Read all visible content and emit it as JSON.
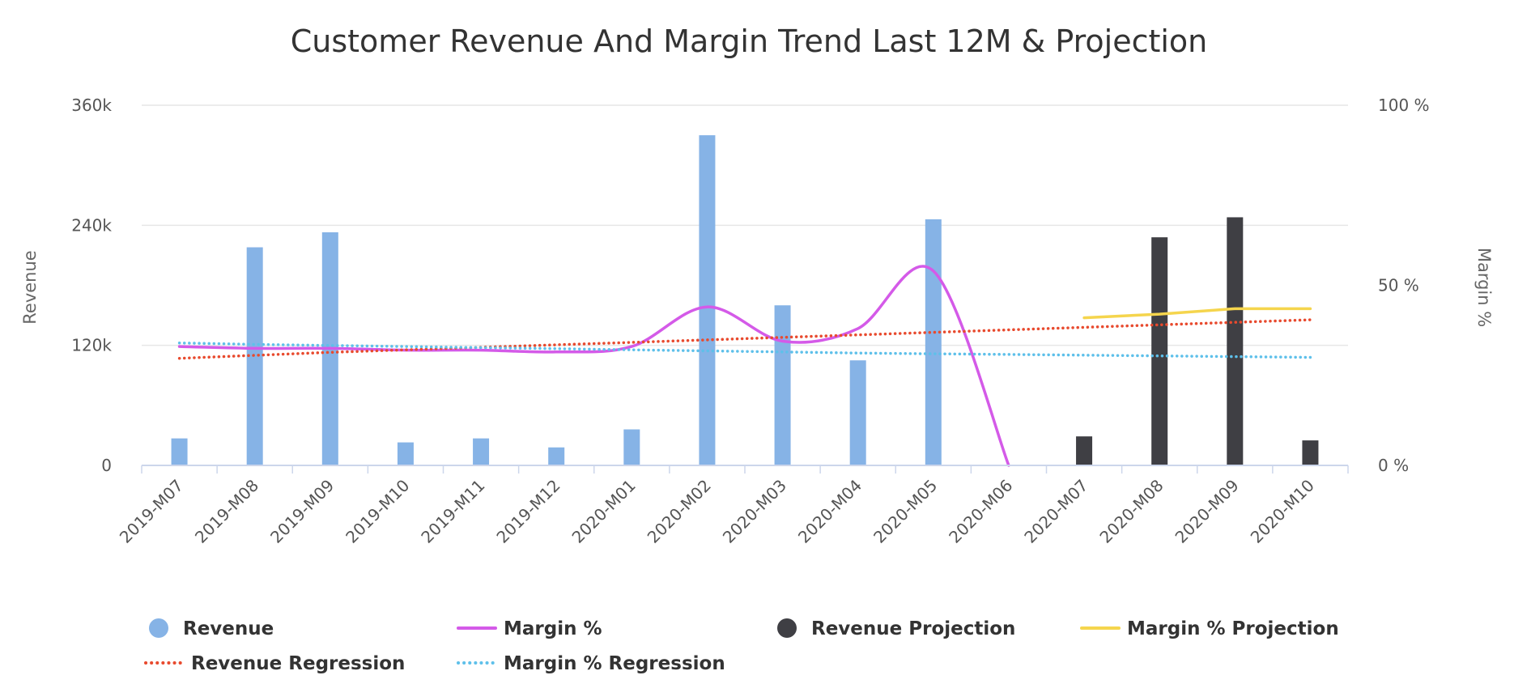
{
  "chart_data": {
    "type": "bar",
    "title": "Customer Revenue And Margin Trend Last 12M & Projection",
    "categories": [
      "2019-M07",
      "2019-M08",
      "2019-M09",
      "2019-M10",
      "2019-M11",
      "2019-M12",
      "2020-M01",
      "2020-M02",
      "2020-M03",
      "2020-M04",
      "2020-M05",
      "2020-M06",
      "2020-M07",
      "2020-M08",
      "2020-M09",
      "2020-M10"
    ],
    "y_left": {
      "title": "Revenue",
      "min": 0,
      "max": 360000,
      "ticks": [
        0,
        120000,
        240000,
        360000
      ],
      "tick_labels": [
        "0",
        "120k",
        "240k",
        "360k"
      ]
    },
    "y_right": {
      "title": "Margin %",
      "min": 0,
      "max": 100,
      "ticks": [
        0,
        50,
        100
      ],
      "tick_labels": [
        "0 %",
        "50 %",
        "100 %"
      ]
    },
    "grid": true,
    "legend_position": "bottom",
    "series": [
      {
        "name": "Revenue",
        "kind": "bar",
        "axis": "left",
        "color": "#86b3e6",
        "values": [
          27000,
          218000,
          233000,
          23000,
          27000,
          18000,
          36000,
          330000,
          160000,
          105000,
          246000,
          null,
          null,
          null,
          null,
          null
        ]
      },
      {
        "name": "Margin %",
        "kind": "spline",
        "axis": "right",
        "color": "#d45ae8",
        "values": [
          33,
          32.5,
          32.5,
          32,
          32,
          31.5,
          33,
          44,
          34.5,
          38,
          54,
          0,
          null,
          null,
          null,
          null
        ]
      },
      {
        "name": "Revenue Projection",
        "kind": "bar",
        "axis": "left",
        "color": "#3f3f44",
        "values": [
          null,
          null,
          null,
          null,
          null,
          null,
          null,
          null,
          null,
          null,
          null,
          null,
          29000,
          228000,
          248000,
          25000
        ]
      },
      {
        "name": "Margin % Projection",
        "kind": "line",
        "axis": "right",
        "color": "#f5d54d",
        "values": [
          null,
          null,
          null,
          null,
          null,
          null,
          null,
          null,
          null,
          null,
          null,
          null,
          41,
          42,
          43.5,
          43.5
        ]
      },
      {
        "name": "Revenue Regression",
        "kind": "dotted-line",
        "axis": "left",
        "color": "#e84a2e",
        "values": [
          107000,
          110000,
          113000,
          115500,
          118000,
          120500,
          123000,
          125500,
          128000,
          130500,
          133000,
          135500,
          138000,
          140500,
          143000,
          145500
        ]
      },
      {
        "name": "Margin % Regression",
        "kind": "dotted-line",
        "axis": "right",
        "color": "#5ec0ea",
        "values": [
          34,
          33.6,
          33.3,
          33,
          32.7,
          32.4,
          32.1,
          31.8,
          31.5,
          31.2,
          31.0,
          30.8,
          30.6,
          30.4,
          30.2,
          30.0
        ]
      }
    ]
  }
}
